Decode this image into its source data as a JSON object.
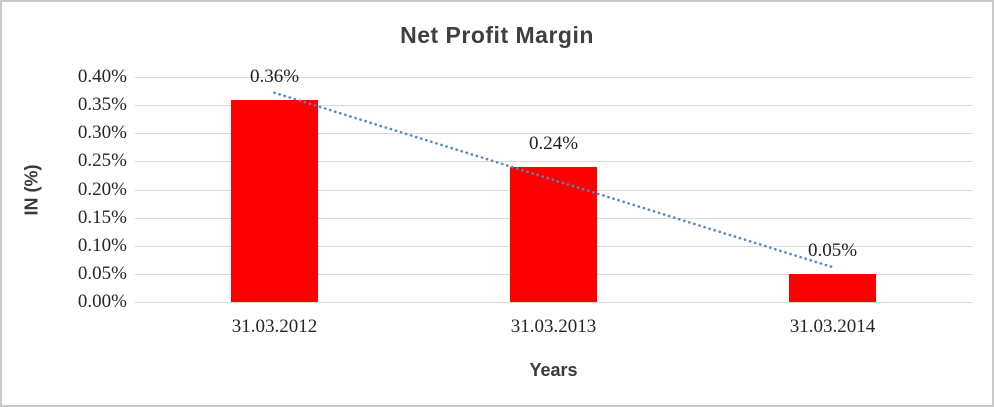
{
  "window": {
    "background": "#ffffff",
    "border_color": "#c9c9c9"
  },
  "chart_data": {
    "type": "bar",
    "title": "Net Profit Margin",
    "xlabel": "Years",
    "ylabel": "IN (%)",
    "categories": [
      "31.03.2012",
      "31.03.2013",
      "31.03.2014"
    ],
    "values": [
      0.36,
      0.24,
      0.05
    ],
    "data_labels": [
      "0.36%",
      "0.24%",
      "0.05%"
    ],
    "y_ticks": [
      "0.40%",
      "0.35%",
      "0.30%",
      "0.25%",
      "0.20%",
      "0.15%",
      "0.10%",
      "0.05%",
      "0.00%"
    ],
    "ylim": [
      0,
      0.4
    ],
    "y_tick_step": 0.05,
    "grid": true,
    "legend": "none",
    "bar_color": "#ff0000",
    "gridline_color": "#d9d9d9",
    "tick_text_color": "#262626",
    "title_color": "#3f3f3f",
    "trendline": {
      "type": "linear",
      "style": "dotted",
      "color": "#4e86c6",
      "start_value": 0.372,
      "end_value": 0.062
    }
  }
}
